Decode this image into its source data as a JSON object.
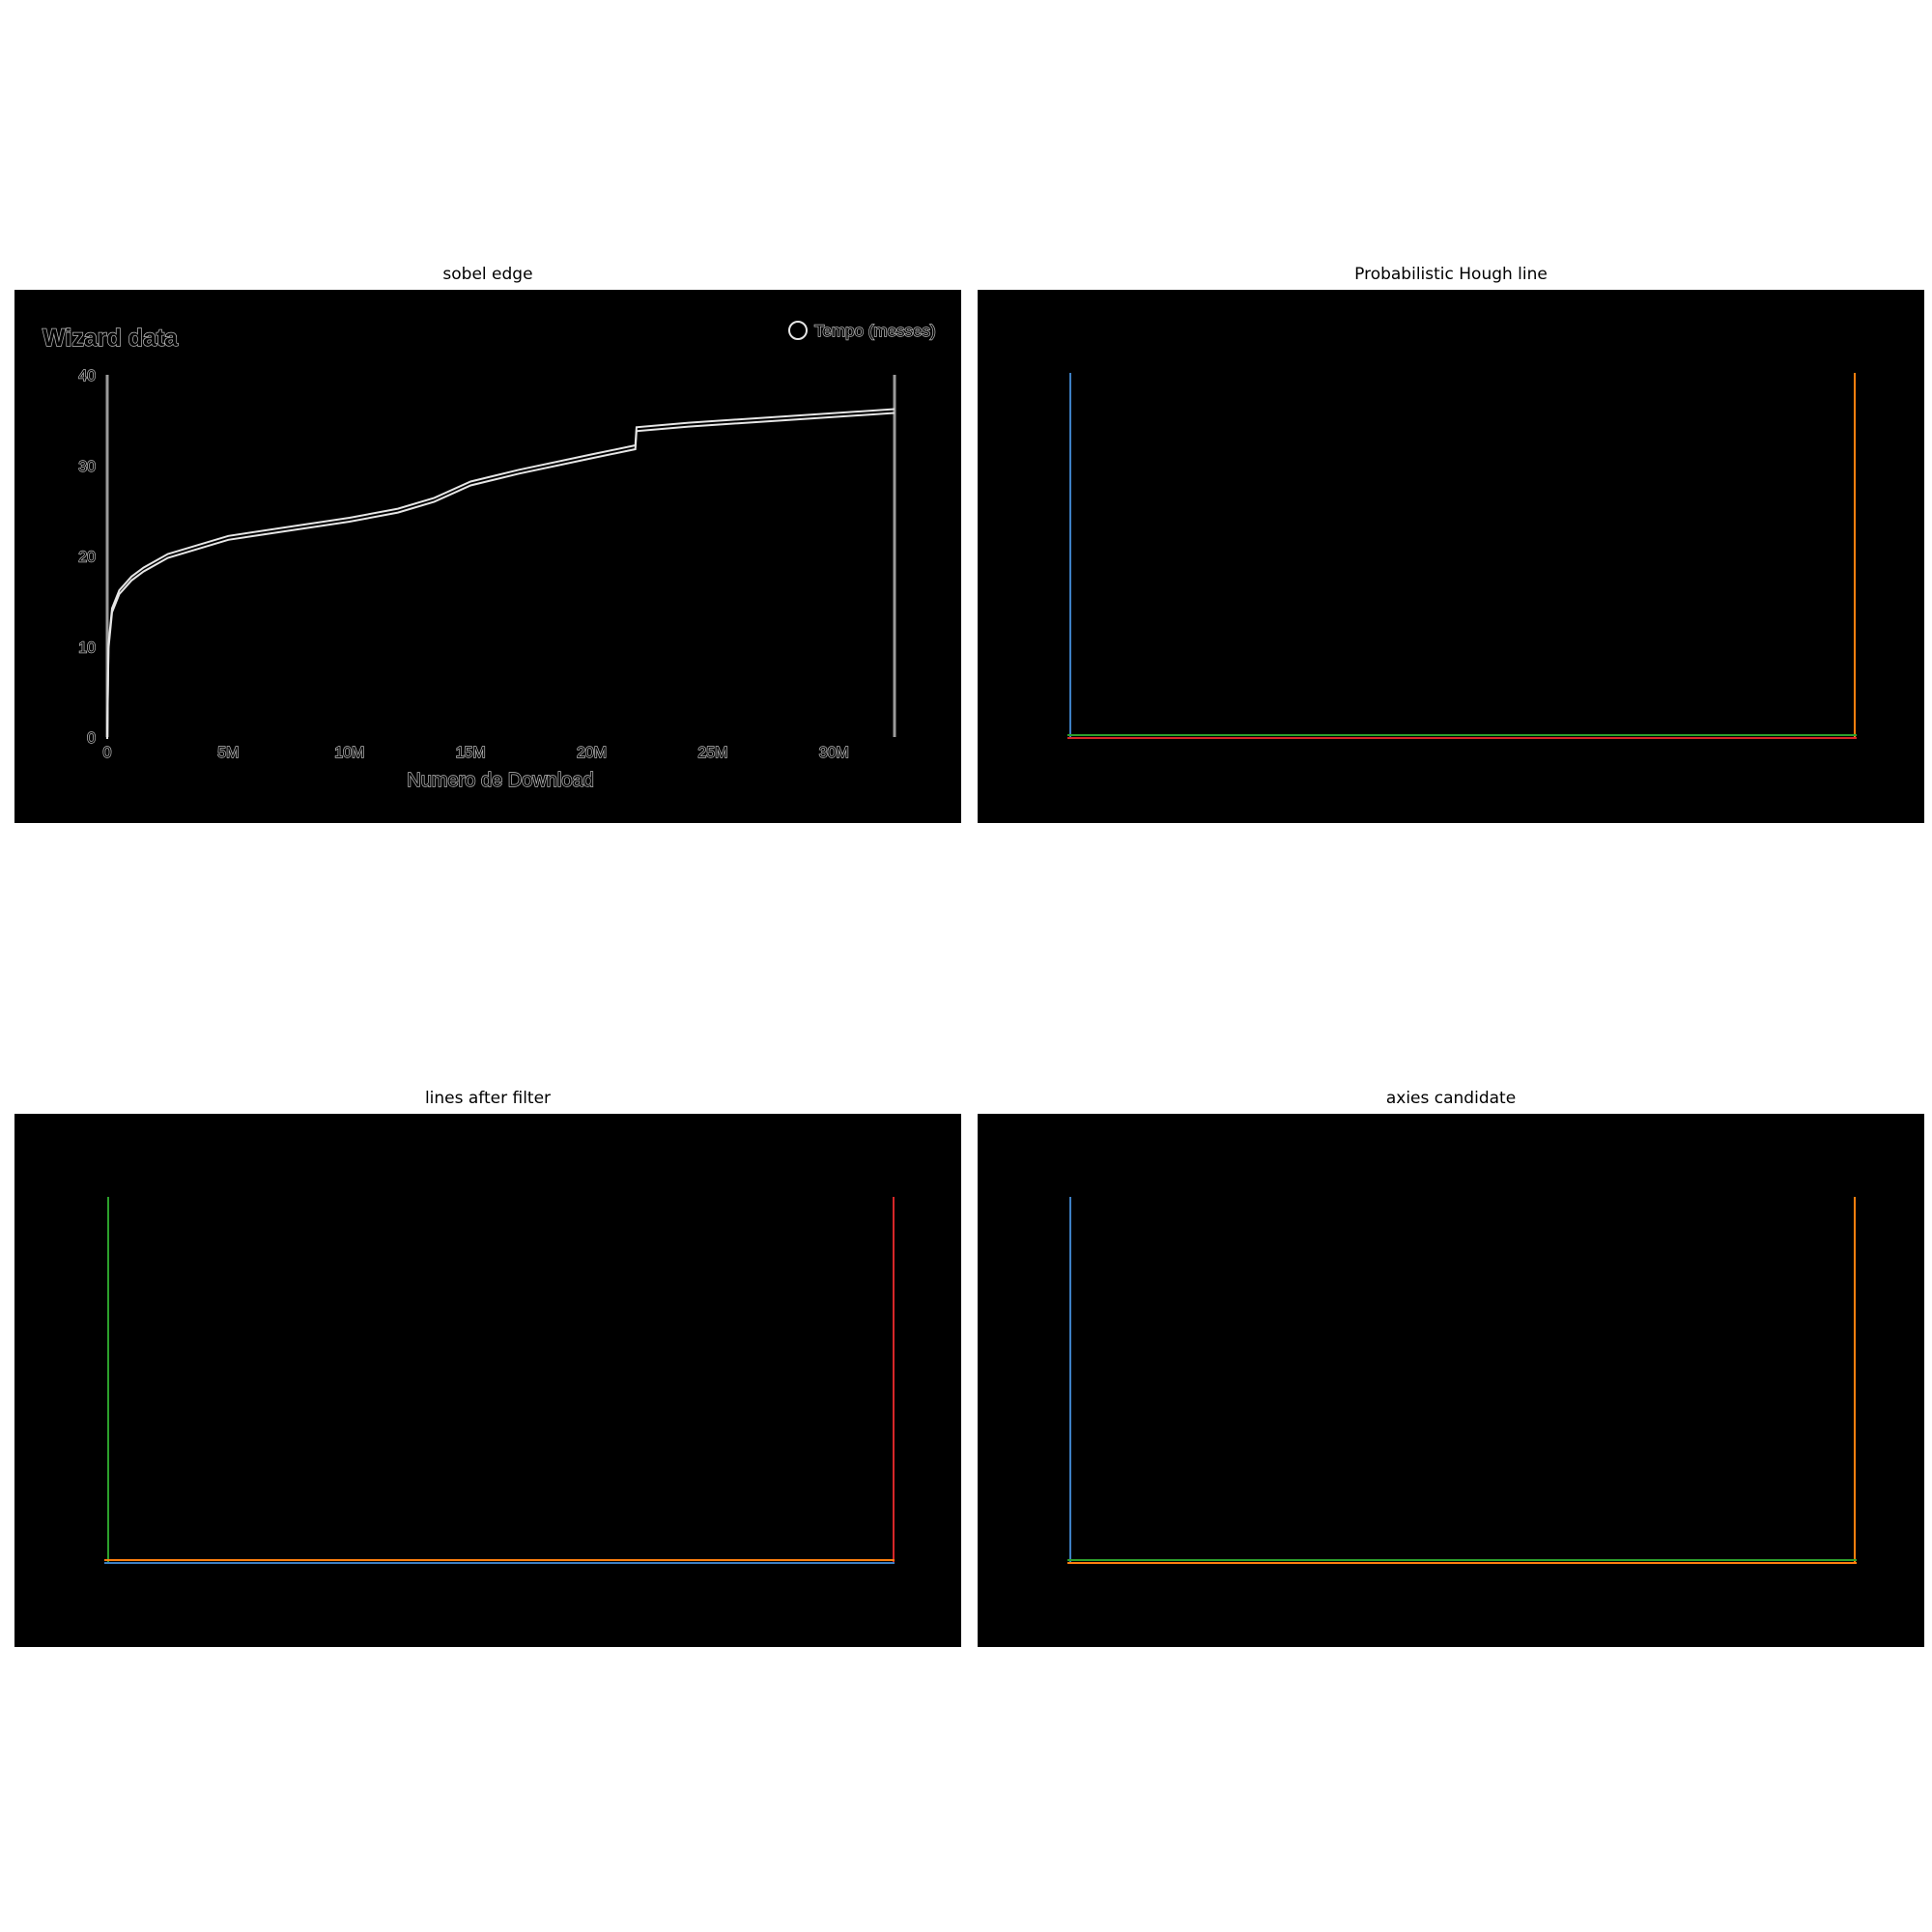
{
  "panels": {
    "p1": {
      "title": "sobel edge"
    },
    "p2": {
      "title": "Probabilistic Hough line"
    },
    "p3": {
      "title": "lines after filter"
    },
    "p4": {
      "title": "axies candidate"
    }
  },
  "edge_chart": {
    "title": "Wizard data",
    "legend": "Tempo (messes)",
    "xlabel": "Numero de Download",
    "x_ticks": [
      "0",
      "5M",
      "10M",
      "15M",
      "20M",
      "25M",
      "30M"
    ],
    "y_ticks": [
      "0",
      "10",
      "20",
      "30",
      "40"
    ]
  },
  "chart_data": {
    "type": "line",
    "title": "Wizard data",
    "xlabel": "Numero de Download",
    "ylabel": "",
    "xlim": [
      0,
      32500000
    ],
    "ylim": [
      0,
      40
    ],
    "grid": false,
    "legend_position": "top-right",
    "series": [
      {
        "name": "Tempo (messes)",
        "x": [
          0,
          50000,
          200000,
          500000,
          1000000,
          1500000,
          2500000,
          4000000,
          5000000,
          7000000,
          10000000,
          12000000,
          13500000,
          15000000,
          17000000,
          20000000,
          21800000,
          21850000,
          24000000,
          28000000,
          32500000
        ],
        "y": [
          0,
          10,
          14,
          16,
          17.5,
          18.5,
          20,
          21.2,
          22,
          22.8,
          24,
          25,
          26.2,
          28,
          29.3,
          31,
          32,
          34,
          34.5,
          35.2,
          36
        ]
      }
    ]
  },
  "line_colors": {
    "blue": "#1f77b4",
    "orange": "#ff7f0e",
    "green": "#2ca02c",
    "red": "#d62728"
  }
}
